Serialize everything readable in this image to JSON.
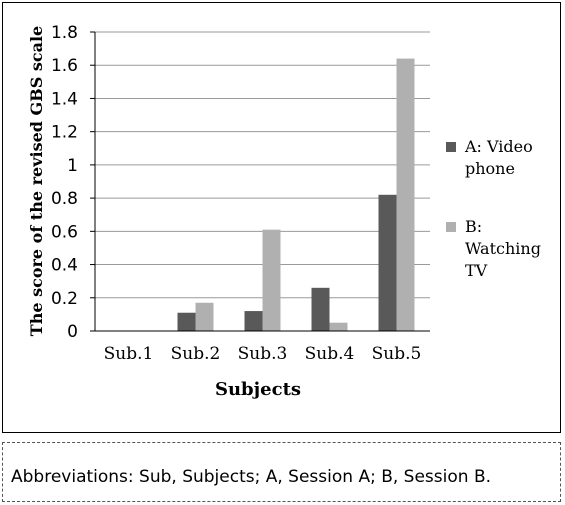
{
  "chart_data": {
    "type": "bar",
    "categories": [
      "Sub.1",
      "Sub.2",
      "Sub.3",
      "Sub.4",
      "Sub.5"
    ],
    "series": [
      {
        "name": "A: Video phone",
        "values": [
          0,
          0.11,
          0.12,
          0.26,
          0.82
        ],
        "color": "#595959"
      },
      {
        "name": "B: Watching TV",
        "values": [
          0,
          0.17,
          0.61,
          0.05,
          1.64
        ],
        "color": "#b0b0b0"
      }
    ],
    "xlabel": "Subjects",
    "ylabel": "The score of the revised GBS scale",
    "ylim": [
      0,
      1.8
    ],
    "yticks": [
      "0",
      "0.2",
      "0.4",
      "0.6",
      "0.8",
      "1",
      "1.2",
      "1.4",
      "1.6",
      "1.8"
    ],
    "grid": true,
    "legend_position": "right"
  },
  "footnote": "Abbreviations: Sub, Subjects; A, Session A; B, Session B."
}
